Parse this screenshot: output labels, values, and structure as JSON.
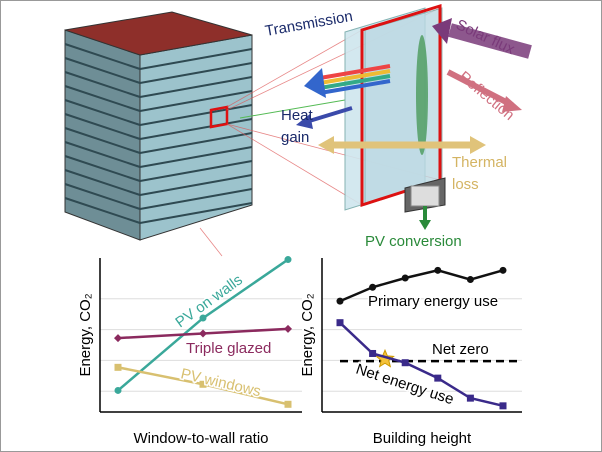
{
  "diagram": {
    "labels": {
      "transmission": "Transmission",
      "solar_flux": "Solar flux",
      "reflection": "Reflection",
      "heat_gain": [
        "Heat",
        "gain"
      ],
      "thermal_loss": [
        "Thermal",
        "loss"
      ],
      "pv_conversion": "PV conversion"
    }
  },
  "chart_data": [
    {
      "type": "line",
      "xlabel": "Window-to-wall ratio",
      "ylabel": "Energy, CO₂",
      "categories": [
        null,
        null,
        null
      ],
      "ylim": [
        0,
        10
      ],
      "grid": true,
      "series": [
        {
          "name": "PV on walls",
          "color": "#3aa89a",
          "values": [
            1.4,
            6.1,
            9.9
          ]
        },
        {
          "name": "Triple glazed",
          "color": "#8b2a5e",
          "values": [
            4.8,
            5.1,
            5.4
          ]
        },
        {
          "name": "PV windows",
          "color": "#d8c070",
          "values": [
            2.9,
            1.8,
            0.5
          ]
        }
      ]
    },
    {
      "type": "line",
      "xlabel": "Building height",
      "ylabel": "Energy, CO₂",
      "categories": [
        null,
        null,
        null,
        null,
        null,
        null
      ],
      "ylim": [
        0,
        10
      ],
      "grid": true,
      "series": [
        {
          "name": "Primary energy use",
          "color": "#111111",
          "values": [
            7.2,
            8.1,
            8.7,
            9.2,
            8.6,
            9.2
          ]
        },
        {
          "name": "Net energy use",
          "color": "#3a2a8a",
          "values": [
            5.8,
            3.8,
            3.2,
            2.2,
            0.9,
            0.4
          ]
        }
      ],
      "net_zero": 3.3,
      "net_zero_label": "Net zero"
    }
  ]
}
